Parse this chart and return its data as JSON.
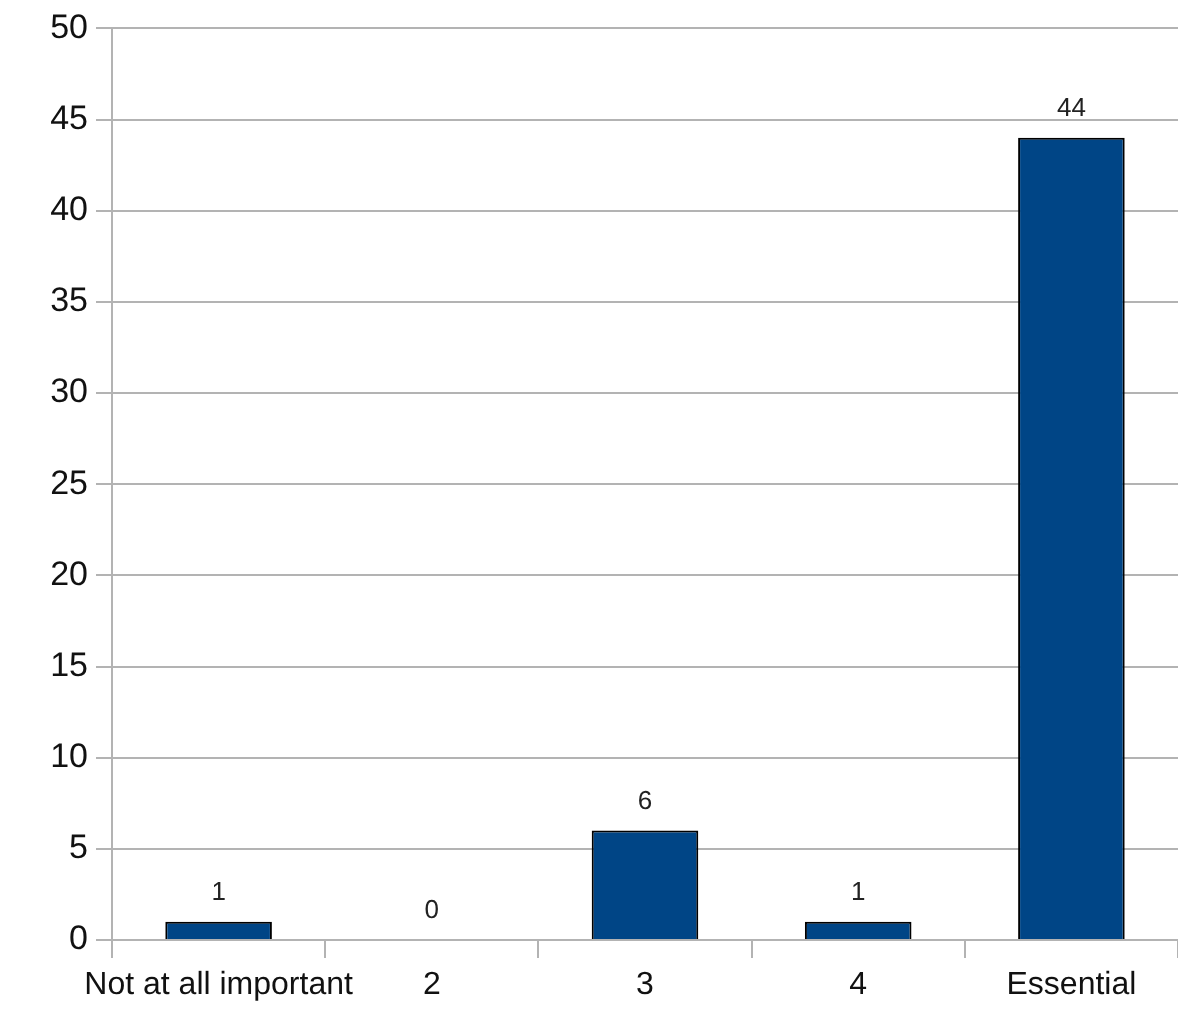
{
  "chart_data": {
    "type": "bar",
    "categories": [
      "Not at all important",
      "2",
      "3",
      "4",
      "Essential"
    ],
    "values": [
      1,
      0,
      6,
      1,
      44
    ],
    "color": "#004586",
    "ylim": [
      0,
      50
    ],
    "yticks": [
      0,
      5,
      10,
      15,
      20,
      25,
      30,
      35,
      40,
      45,
      50
    ],
    "grid": "y",
    "legend": false,
    "data_labels": true
  }
}
